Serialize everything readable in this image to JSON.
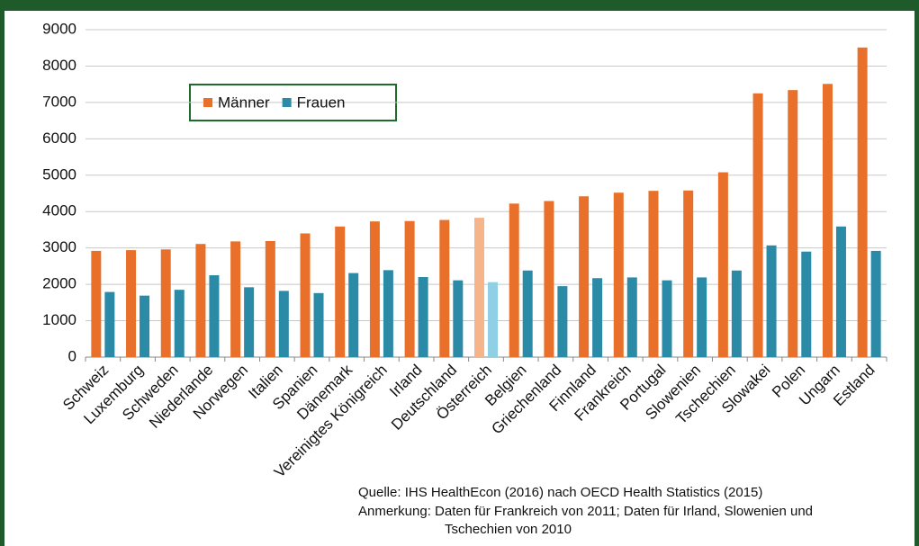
{
  "chart_data": {
    "type": "bar",
    "categories": [
      "Schweiz",
      "Luxemburg",
      "Schweden",
      "Niederlande",
      "Norwegen",
      "Italien",
      "Spanien",
      "Dänemark",
      "Vereinigtes Königreich",
      "Irland",
      "Deutschland",
      "Österreich",
      "Belgien",
      "Griechenland",
      "Finnland",
      "Frankreich",
      "Portugal",
      "Slowenien",
      "Tschechien",
      "Slowakei",
      "Polen",
      "Ungarn",
      "Estland"
    ],
    "series": [
      {
        "name": "Männer",
        "color": "#e8702a",
        "colors": [
          "#e8702a",
          "#e8702a",
          "#e8702a",
          "#e8702a",
          "#e8702a",
          "#e8702a",
          "#e8702a",
          "#e8702a",
          "#e8702a",
          "#e8702a",
          "#e8702a",
          "#f5b48a",
          "#e8702a",
          "#e8702a",
          "#e8702a",
          "#e8702a",
          "#e8702a",
          "#e8702a",
          "#e8702a",
          "#e8702a",
          "#e8702a",
          "#e8702a",
          "#e8702a"
        ],
        "values": [
          2920,
          2940,
          2960,
          3110,
          3180,
          3190,
          3400,
          3590,
          3730,
          3740,
          3770,
          3830,
          4220,
          4290,
          4420,
          4520,
          4570,
          4580,
          5080,
          7250,
          7340,
          7510,
          8510
        ]
      },
      {
        "name": "Frauen",
        "color": "#2b8aa6",
        "colors": [
          "#2b8aa6",
          "#2b8aa6",
          "#2b8aa6",
          "#2b8aa6",
          "#2b8aa6",
          "#2b8aa6",
          "#2b8aa6",
          "#2b8aa6",
          "#2b8aa6",
          "#2b8aa6",
          "#2b8aa6",
          "#8fd0e4",
          "#2b8aa6",
          "#2b8aa6",
          "#2b8aa6",
          "#2b8aa6",
          "#2b8aa6",
          "#2b8aa6",
          "#2b8aa6",
          "#2b8aa6",
          "#2b8aa6",
          "#2b8aa6",
          "#2b8aa6"
        ],
        "values": [
          1790,
          1690,
          1850,
          2250,
          1920,
          1820,
          1760,
          2310,
          2390,
          2200,
          2110,
          2060,
          2380,
          1950,
          2170,
          2190,
          2110,
          2190,
          2380,
          3070,
          2900,
          3590,
          2920
        ]
      }
    ],
    "ylim": [
      0,
      9000
    ],
    "yticks": [
      0,
      1000,
      2000,
      3000,
      4000,
      5000,
      6000,
      7000,
      8000,
      9000
    ],
    "grid": true,
    "source": "Quelle: IHS HealthEcon (2016) nach OECD Health Statistics (2015)",
    "notes": [
      "Anmerkung: Daten für Frankreich von 2011; Daten für Irland, Slowenien und",
      "Tschechien von 2010"
    ]
  }
}
